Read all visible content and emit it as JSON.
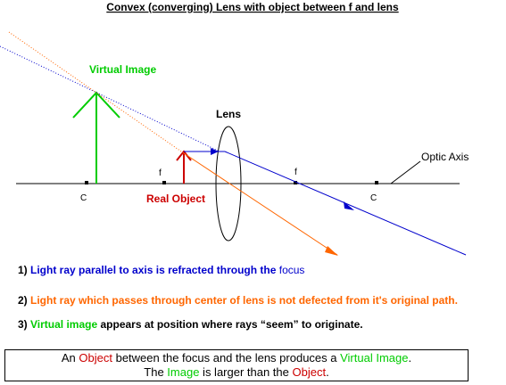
{
  "title": "Convex (converging) Lens with object between f and lens",
  "labels": {
    "virtual_image": "Virtual Image",
    "lens": "Lens",
    "optic_axis": "Optic Axis",
    "real_object": "Real Object",
    "c_left": "C",
    "c_right": "C",
    "f_left": "f",
    "f_right": "f"
  },
  "notes": {
    "n1": {
      "num": "1)",
      "text": "Light ray parallel to axis is refracted through the ",
      "highlight": "focus"
    },
    "n2": {
      "num": "2)",
      "text": "Light ray which passes through center of lens is not defected from it's original path."
    },
    "n3": {
      "num": "3)",
      "highlight": "Virtual image",
      "text": " appears at position where rays “seem” to originate."
    }
  },
  "summary": {
    "line1": {
      "a": "An ",
      "b": "Object",
      "c": " between the focus and the lens produces a ",
      "d": "Virtual Image",
      "e": "."
    },
    "line2": {
      "a": "The ",
      "b": "Image",
      "c": " is larger than the ",
      "d": "Object",
      "e": "."
    }
  },
  "colors": {
    "blue_ray": "#0000cc",
    "orange_ray": "#ff6600",
    "virtual_image": "#00cc00",
    "real_object": "#cc0000"
  }
}
